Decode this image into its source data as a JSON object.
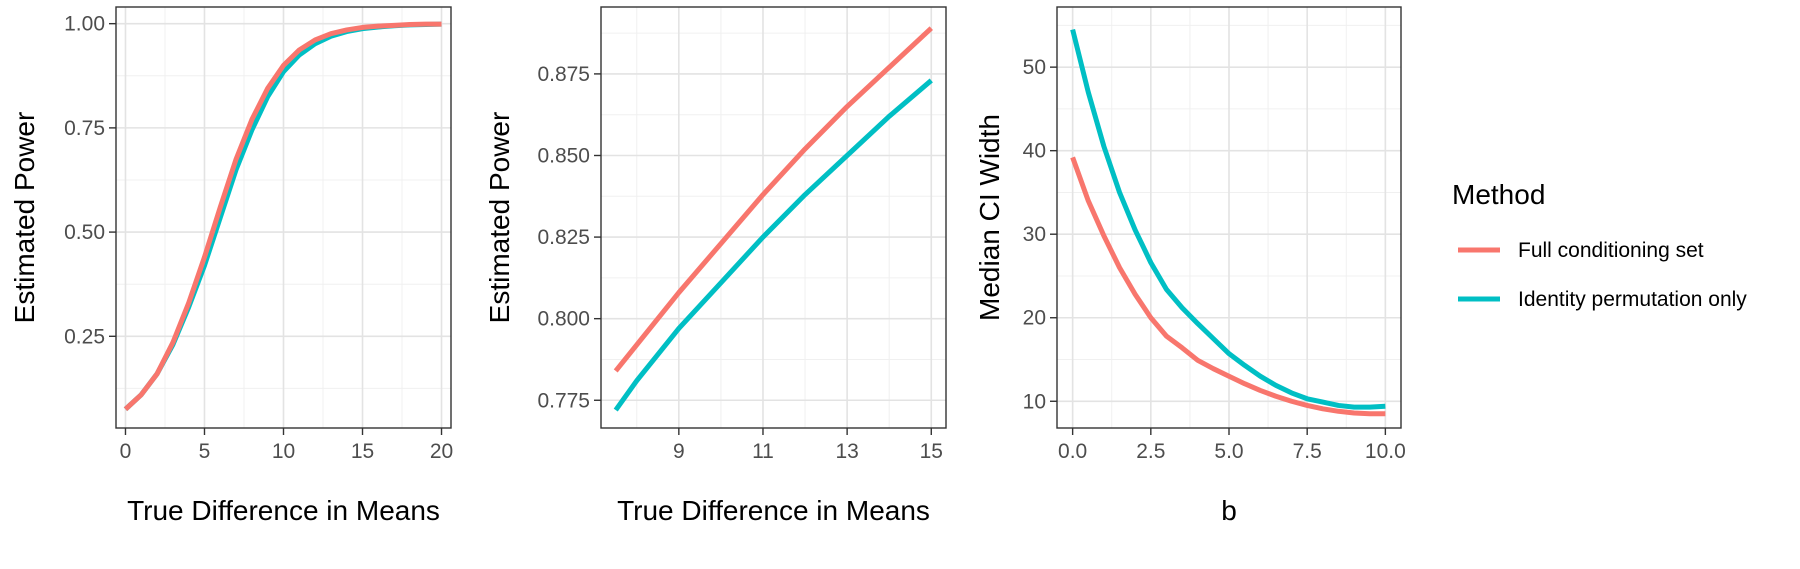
{
  "colors": {
    "full_conditioning": "#F8766D",
    "identity_permutation": "#00BFC4"
  },
  "legend": {
    "title": "Method",
    "items": [
      {
        "label": "Full conditioning set",
        "color": "#F8766D"
      },
      {
        "label": "Identity permutation only",
        "color": "#00BFC4"
      }
    ]
  },
  "chart_data": [
    {
      "type": "line",
      "title": "",
      "xlabel": "True Difference in Means",
      "ylabel": "Estimated Power",
      "xlim": [
        -0.6,
        20.6
      ],
      "ylim": [
        0.03,
        1.04
      ],
      "xticks": [
        0,
        5,
        10,
        15,
        20
      ],
      "xtick_labels": [
        "0",
        "5",
        "10",
        "15",
        "20"
      ],
      "yticks": [
        0.25,
        0.5,
        0.75,
        1.0
      ],
      "ytick_labels": [
        "0.25",
        "0.50",
        "0.75",
        "1.00"
      ],
      "series": [
        {
          "name": "Identity permutation only",
          "x": [
            0,
            1,
            2,
            3,
            4,
            5,
            6,
            7,
            8,
            9,
            10,
            11,
            12,
            13,
            14,
            15,
            16,
            17,
            18,
            19,
            20
          ],
          "y": [
            0.075,
            0.11,
            0.16,
            0.23,
            0.32,
            0.42,
            0.535,
            0.65,
            0.745,
            0.825,
            0.885,
            0.925,
            0.952,
            0.97,
            0.981,
            0.988,
            0.992,
            0.995,
            0.997,
            0.998,
            0.999
          ]
        },
        {
          "name": "Full conditioning set",
          "x": [
            0,
            1,
            2,
            3,
            4,
            5,
            6,
            7,
            8,
            9,
            10,
            11,
            12,
            13,
            14,
            15,
            16,
            17,
            18,
            19,
            20
          ],
          "y": [
            0.075,
            0.11,
            0.16,
            0.235,
            0.33,
            0.44,
            0.56,
            0.675,
            0.77,
            0.845,
            0.9,
            0.937,
            0.961,
            0.976,
            0.985,
            0.991,
            0.994,
            0.996,
            0.998,
            0.999,
            0.999
          ]
        }
      ]
    },
    {
      "type": "line",
      "title": "",
      "xlabel": "True Difference in Means",
      "ylabel": "Estimated Power",
      "xlim": [
        7.15,
        15.35
      ],
      "ylim": [
        0.7665,
        0.8955
      ],
      "xticks": [
        9,
        11,
        13,
        15
      ],
      "xtick_labels": [
        "9",
        "11",
        "13",
        "15"
      ],
      "yticks": [
        0.775,
        0.8,
        0.825,
        0.85,
        0.875
      ],
      "ytick_labels": [
        "0.775",
        "0.800",
        "0.825",
        "0.850",
        "0.875"
      ],
      "series": [
        {
          "name": "Full conditioning set",
          "x": [
            7.5,
            8,
            9,
            10,
            11,
            12,
            13,
            14,
            15
          ],
          "y": [
            0.784,
            0.792,
            0.808,
            0.823,
            0.838,
            0.852,
            0.865,
            0.877,
            0.889
          ]
        },
        {
          "name": "Identity permutation only",
          "x": [
            7.5,
            8,
            9,
            10,
            11,
            12,
            13,
            14,
            15
          ],
          "y": [
            0.772,
            0.781,
            0.797,
            0.811,
            0.825,
            0.838,
            0.85,
            0.862,
            0.873
          ]
        }
      ]
    },
    {
      "type": "line",
      "title": "",
      "xlabel": "b",
      "ylabel": "Median CI Width",
      "xlim": [
        -0.5,
        10.5
      ],
      "ylim": [
        6.8,
        57.2
      ],
      "xticks": [
        0,
        2.5,
        5,
        7.5,
        10
      ],
      "xtick_labels": [
        "0.0",
        "2.5",
        "5.0",
        "7.5",
        "10.0"
      ],
      "yticks": [
        10,
        20,
        30,
        40,
        50
      ],
      "ytick_labels": [
        "10",
        "20",
        "30",
        "40",
        "50"
      ],
      "series": [
        {
          "name": "Full conditioning set",
          "x": [
            0,
            0.5,
            1,
            1.5,
            2,
            2.5,
            3,
            3.5,
            4,
            4.5,
            5,
            5.5,
            6,
            6.5,
            7,
            7.5,
            8,
            8.5,
            9,
            9.5,
            10
          ],
          "y": [
            39.2,
            34.0,
            29.8,
            26.0,
            22.8,
            20.0,
            17.8,
            16.4,
            14.9,
            13.9,
            13.0,
            12.1,
            11.3,
            10.6,
            10.0,
            9.5,
            9.1,
            8.8,
            8.6,
            8.5,
            8.5
          ]
        },
        {
          "name": "Identity permutation only",
          "x": [
            0,
            0.5,
            1,
            1.5,
            2,
            2.5,
            3,
            3.5,
            4,
            4.5,
            5,
            5.5,
            6,
            6.5,
            7,
            7.5,
            8,
            8.5,
            9,
            9.5,
            10
          ],
          "y": [
            54.5,
            47.0,
            40.5,
            35.0,
            30.5,
            26.6,
            23.4,
            21.2,
            19.3,
            17.5,
            15.7,
            14.3,
            13.0,
            11.9,
            11.0,
            10.3,
            9.9,
            9.5,
            9.3,
            9.3,
            9.4
          ]
        }
      ]
    }
  ]
}
